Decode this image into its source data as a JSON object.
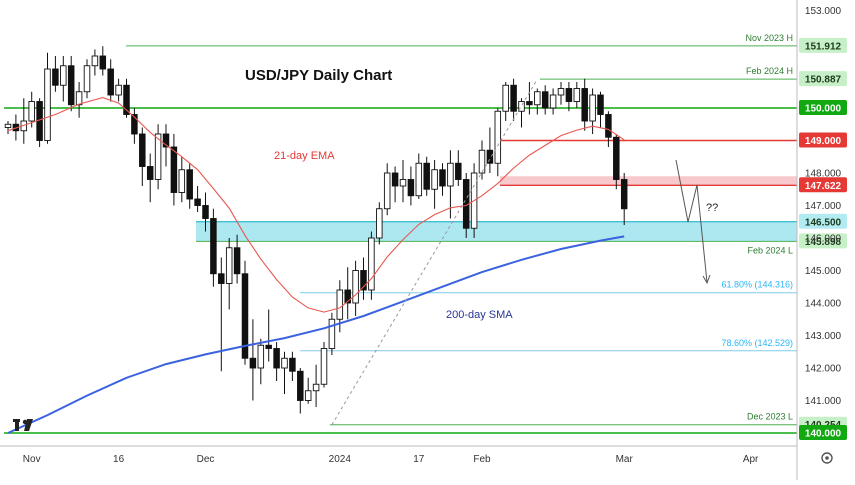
{
  "chart_data": {
    "type": "candlestick",
    "title": "USD/JPY Daily Chart",
    "ylim": [
      139.6,
      153.2
    ],
    "y_ticks": [
      141.0,
      142.0,
      143.0,
      144.0,
      145.0,
      146.0,
      147.0,
      148.0,
      153.0
    ],
    "x_ticks": [
      {
        "label": "Nov",
        "index": 3
      },
      {
        "label": "16",
        "index": 14
      },
      {
        "label": "Dec",
        "index": 25
      },
      {
        "label": "2024",
        "index": 42
      },
      {
        "label": "17",
        "index": 52
      },
      {
        "label": "Feb",
        "index": 60
      },
      {
        "label": "Mar",
        "index": 78
      },
      {
        "label": "Apr",
        "index": 94
      }
    ],
    "candles": [
      [
        149.4,
        149.6,
        149.2,
        149.5
      ],
      [
        149.5,
        149.8,
        149.0,
        149.3
      ],
      [
        149.3,
        150.3,
        148.9,
        149.6
      ],
      [
        149.6,
        150.5,
        149.4,
        150.2
      ],
      [
        150.2,
        150.3,
        148.8,
        149.0
      ],
      [
        149.0,
        151.7,
        148.9,
        151.2
      ],
      [
        151.2,
        151.6,
        150.5,
        150.7
      ],
      [
        150.7,
        151.6,
        150.2,
        151.3
      ],
      [
        151.3,
        151.6,
        149.9,
        150.1
      ],
      [
        150.1,
        150.8,
        149.7,
        150.5
      ],
      [
        150.5,
        151.5,
        150.3,
        151.3
      ],
      [
        151.3,
        151.8,
        151.0,
        151.6
      ],
      [
        151.6,
        151.9,
        151.0,
        151.2
      ],
      [
        151.2,
        151.5,
        150.2,
        150.4
      ],
      [
        150.4,
        150.9,
        150.2,
        150.7
      ],
      [
        150.7,
        150.9,
        149.7,
        149.8
      ],
      [
        149.8,
        150.0,
        148.9,
        149.2
      ],
      [
        149.2,
        149.4,
        147.6,
        148.2
      ],
      [
        148.2,
        148.6,
        147.1,
        147.8
      ],
      [
        147.8,
        149.5,
        147.5,
        149.2
      ],
      [
        149.2,
        149.5,
        148.2,
        148.8
      ],
      [
        148.8,
        149.2,
        147.0,
        147.4
      ],
      [
        147.4,
        148.5,
        147.1,
        148.1
      ],
      [
        148.1,
        148.3,
        146.9,
        147.2
      ],
      [
        147.2,
        147.6,
        146.8,
        147.0
      ],
      [
        147.0,
        147.4,
        146.2,
        146.6
      ],
      [
        146.6,
        146.9,
        144.5,
        144.9
      ],
      [
        144.9,
        145.4,
        141.9,
        144.6
      ],
      [
        144.6,
        146.0,
        143.8,
        145.7
      ],
      [
        145.7,
        146.1,
        144.6,
        144.9
      ],
      [
        144.9,
        145.3,
        142.1,
        142.3
      ],
      [
        142.3,
        143.5,
        141.0,
        142.0
      ],
      [
        142.0,
        142.9,
        141.5,
        142.7
      ],
      [
        142.7,
        143.8,
        142.2,
        142.6
      ],
      [
        142.6,
        142.8,
        141.6,
        142.0
      ],
      [
        142.0,
        142.5,
        141.2,
        142.3
      ],
      [
        142.3,
        142.5,
        141.6,
        141.9
      ],
      [
        141.9,
        142.0,
        140.6,
        141.0
      ],
      [
        141.0,
        141.7,
        140.9,
        141.3
      ],
      [
        141.3,
        142.1,
        140.8,
        141.5
      ],
      [
        141.5,
        142.8,
        141.4,
        142.6
      ],
      [
        142.6,
        143.7,
        142.4,
        143.5
      ],
      [
        143.5,
        144.7,
        143.1,
        144.4
      ],
      [
        144.4,
        145.1,
        143.5,
        144.0
      ],
      [
        144.0,
        145.3,
        143.6,
        145.0
      ],
      [
        145.0,
        145.4,
        144.1,
        144.4
      ],
      [
        144.4,
        146.2,
        144.1,
        146.0
      ],
      [
        146.0,
        147.1,
        145.8,
        146.9
      ],
      [
        146.9,
        148.3,
        146.7,
        148.0
      ],
      [
        148.0,
        148.2,
        147.1,
        147.6
      ],
      [
        147.6,
        148.4,
        147.1,
        147.8
      ],
      [
        147.8,
        148.2,
        147.0,
        147.3
      ],
      [
        147.3,
        148.6,
        147.2,
        148.3
      ],
      [
        148.3,
        148.5,
        147.3,
        147.5
      ],
      [
        147.5,
        148.4,
        146.9,
        148.1
      ],
      [
        148.1,
        148.3,
        147.3,
        147.6
      ],
      [
        147.6,
        148.7,
        146.6,
        148.3
      ],
      [
        148.3,
        148.7,
        147.6,
        147.8
      ],
      [
        147.8,
        148.0,
        146.0,
        146.3
      ],
      [
        146.3,
        148.3,
        146.0,
        148.0
      ],
      [
        148.0,
        149.0,
        147.8,
        148.7
      ],
      [
        148.7,
        149.4,
        148.0,
        148.3
      ],
      [
        148.3,
        150.0,
        147.9,
        149.9
      ],
      [
        149.9,
        150.8,
        149.6,
        150.7
      ],
      [
        150.7,
        150.9,
        149.6,
        149.9
      ],
      [
        149.9,
        150.3,
        149.4,
        150.2
      ],
      [
        150.2,
        150.8,
        149.8,
        150.1
      ],
      [
        150.1,
        150.6,
        149.8,
        150.5
      ],
      [
        150.5,
        150.7,
        149.8,
        150.0
      ],
      [
        150.0,
        150.6,
        149.8,
        150.4
      ],
      [
        150.4,
        150.8,
        150.1,
        150.6
      ],
      [
        150.6,
        150.8,
        149.9,
        150.2
      ],
      [
        150.2,
        150.8,
        150.0,
        150.6
      ],
      [
        150.6,
        150.9,
        149.3,
        149.6
      ],
      [
        149.6,
        150.6,
        149.2,
        150.4
      ],
      [
        150.4,
        150.5,
        149.4,
        149.8
      ],
      [
        149.8,
        149.9,
        148.8,
        149.1
      ],
      [
        149.1,
        149.2,
        147.5,
        147.8
      ],
      [
        147.8,
        148.0,
        146.4,
        146.9
      ]
    ],
    "sma200": [
      [
        0,
        140.0
      ],
      [
        5,
        140.55
      ],
      [
        10,
        141.15
      ],
      [
        15,
        141.7
      ],
      [
        20,
        142.12
      ],
      [
        25,
        142.42
      ],
      [
        30,
        142.68
      ],
      [
        35,
        142.92
      ],
      [
        40,
        143.22
      ],
      [
        45,
        143.6
      ],
      [
        50,
        144.05
      ],
      [
        55,
        144.5
      ],
      [
        60,
        144.95
      ],
      [
        65,
        145.33
      ],
      [
        70,
        145.66
      ],
      [
        75,
        145.92
      ],
      [
        78,
        146.05
      ]
    ],
    "ema21": [
      [
        0,
        149.3
      ],
      [
        3,
        149.55
      ],
      [
        6,
        149.8
      ],
      [
        9,
        150.12
      ],
      [
        12,
        150.32
      ],
      [
        14,
        150.15
      ],
      [
        16,
        149.72
      ],
      [
        18,
        149.25
      ],
      [
        20,
        148.86
      ],
      [
        22,
        148.5
      ],
      [
        24,
        148.1
      ],
      [
        26,
        147.52
      ],
      [
        28,
        146.92
      ],
      [
        30,
        146.08
      ],
      [
        32,
        145.35
      ],
      [
        34,
        144.72
      ],
      [
        36,
        144.18
      ],
      [
        38,
        143.85
      ],
      [
        40,
        143.72
      ],
      [
        42,
        143.85
      ],
      [
        44,
        144.25
      ],
      [
        46,
        144.75
      ],
      [
        48,
        145.42
      ],
      [
        50,
        145.95
      ],
      [
        52,
        146.42
      ],
      [
        54,
        146.72
      ],
      [
        56,
        146.93
      ],
      [
        58,
        147.0
      ],
      [
        60,
        147.3
      ],
      [
        62,
        147.68
      ],
      [
        64,
        148.15
      ],
      [
        66,
        148.55
      ],
      [
        68,
        148.85
      ],
      [
        70,
        149.15
      ],
      [
        72,
        149.32
      ],
      [
        74,
        149.44
      ],
      [
        76,
        149.34
      ],
      [
        78,
        149.02
      ]
    ],
    "h_lines": [
      {
        "value": 151.912,
        "label": "Nov 2023 H",
        "badge": "151.912",
        "color": "#4caf50"
      },
      {
        "value": 150.887,
        "label": "Feb 2024 H",
        "badge": "150.887",
        "color": "#4caf50"
      },
      {
        "value": 150.0,
        "label": "",
        "badge": "150.000",
        "color": "#11a811"
      },
      {
        "value": 149.0,
        "label": "",
        "badge": "149.000",
        "color": "#e53935"
      },
      {
        "value": 147.622,
        "label": "",
        "badge": "147.622",
        "color": "#e53935"
      },
      {
        "value": 146.5,
        "label": "",
        "badge": "146.500",
        "color": "#00acc1"
      },
      {
        "value": 145.898,
        "label": "Feb 2024 L",
        "badge": "145.898",
        "color": "#4caf50"
      },
      {
        "value": 144.316,
        "label": "61.80% (144.316)",
        "badge": "",
        "color": "#80cbe8"
      },
      {
        "value": 142.529,
        "label": "78.60% (142.529)",
        "badge": "",
        "color": "#80cbe8"
      },
      {
        "value": 140.254,
        "label": "Dec 2023 L",
        "badge": "140.254",
        "color": "#4caf50"
      },
      {
        "value": 140.0,
        "label": "",
        "badge": "140.000",
        "color": "#11a811"
      }
    ],
    "zones": [
      {
        "from": 146.5,
        "to": 145.898,
        "color": "#a4e4ee"
      },
      {
        "from": 147.9,
        "to": 147.622,
        "color": "#f6c3c8"
      }
    ],
    "annotations": {
      "ema_label": "21-day EMA",
      "sma_label": "200-day SMA",
      "question": "??"
    },
    "colors": {
      "up": "#ffffff",
      "down": "#111111",
      "ema": "#e8584f",
      "sma": "#3b62e0",
      "badge_green": "#11a811",
      "badge_red": "#e53935",
      "badge_cyan": "#0097a7"
    }
  },
  "watermark": "TradingView logo",
  "settings_icon": "gear-icon"
}
